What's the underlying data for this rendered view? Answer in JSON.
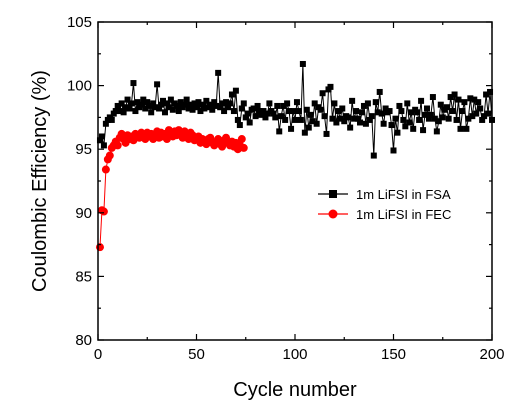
{
  "chart_data": {
    "type": "scatter",
    "xlabel": "Cycle number",
    "ylabel": "Coulombic Efficiency (%)",
    "xlim": [
      0,
      200
    ],
    "ylim": [
      80,
      105
    ],
    "xticks": [
      0,
      50,
      100,
      150,
      200
    ],
    "yticks": [
      80,
      85,
      90,
      95,
      100,
      105
    ],
    "xtick_labels": [
      "0",
      "50",
      "100",
      "150",
      "200"
    ],
    "ytick_labels": [
      "80",
      "85",
      "90",
      "95",
      "100",
      "105"
    ],
    "legend_position": "center-right",
    "grid": false,
    "series": [
      {
        "name": "1m LiFSI in FSA",
        "color": "#000000",
        "marker": "square",
        "x": [
          1,
          2,
          3,
          4,
          5,
          6,
          7,
          8,
          9,
          10,
          11,
          12,
          13,
          14,
          15,
          16,
          17,
          18,
          19,
          20,
          21,
          22,
          23,
          24,
          25,
          26,
          27,
          28,
          29,
          30,
          31,
          32,
          33,
          34,
          35,
          36,
          37,
          38,
          39,
          40,
          41,
          42,
          43,
          44,
          45,
          46,
          47,
          48,
          49,
          50,
          51,
          52,
          53,
          54,
          55,
          56,
          57,
          58,
          59,
          60,
          61,
          62,
          63,
          64,
          65,
          66,
          67,
          68,
          69,
          70,
          71,
          72,
          73,
          74,
          75,
          76,
          77,
          78,
          79,
          80,
          81,
          82,
          83,
          84,
          85,
          86,
          87,
          88,
          89,
          90,
          91,
          92,
          93,
          94,
          95,
          96,
          97,
          98,
          99,
          100,
          101,
          102,
          103,
          104,
          105,
          106,
          107,
          108,
          109,
          110,
          111,
          112,
          113,
          114,
          115,
          116,
          117,
          118,
          119,
          120,
          121,
          122,
          123,
          124,
          125,
          126,
          127,
          128,
          129,
          130,
          131,
          132,
          133,
          134,
          135,
          136,
          137,
          138,
          139,
          140,
          141,
          142,
          143,
          144,
          145,
          146,
          147,
          148,
          149,
          150,
          151,
          152,
          153,
          154,
          155,
          156,
          157,
          158,
          159,
          160,
          161,
          162,
          163,
          164,
          165,
          166,
          167,
          168,
          169,
          170,
          171,
          172,
          173,
          174,
          175,
          176,
          177,
          178,
          179,
          180,
          181,
          182,
          183,
          184,
          185,
          186,
          187,
          188,
          189,
          190,
          191,
          192,
          193,
          194,
          195,
          196,
          197,
          198,
          199,
          200
        ],
        "y": [
          95.7,
          96.0,
          95.3,
          97.0,
          97.3,
          97.5,
          97.3,
          97.8,
          98.0,
          98.4,
          98.0,
          98.6,
          97.9,
          98.3,
          98.9,
          98.2,
          98.6,
          100.2,
          98.0,
          98.7,
          98.3,
          98.5,
          98.9,
          98.2,
          98.7,
          98.4,
          97.9,
          98.6,
          98.3,
          100.1,
          98.2,
          98.5,
          98.8,
          97.9,
          98.6,
          98.3,
          98.9,
          98.1,
          98.6,
          98.4,
          98.0,
          98.7,
          98.3,
          98.5,
          98.9,
          98.2,
          98.5,
          98.1,
          98.6,
          98.3,
          98.7,
          98.0,
          98.5,
          98.2,
          98.8,
          98.3,
          98.5,
          98.1,
          98.7,
          98.4,
          101.0,
          98.3,
          98.6,
          98.0,
          98.7,
          98.3,
          98.6,
          99.3,
          98.0,
          99.6,
          97.3,
          96.9,
          98.2,
          98.6,
          97.5,
          97.8,
          97.1,
          98.1,
          98.2,
          97.6,
          98.4,
          98.0,
          97.7,
          98.0,
          97.5,
          97.8,
          98.6,
          98.0,
          97.8,
          97.5,
          98.4,
          96.4,
          97.6,
          98.4,
          97.3,
          98.6,
          98.0,
          96.6,
          98.0,
          97.3,
          98.7,
          98.0,
          97.3,
          101.7,
          96.3,
          98.1,
          96.7,
          97.7,
          97.2,
          98.6,
          97.0,
          98.3,
          98.1,
          99.4,
          97.6,
          96.2,
          99.7,
          99.9,
          97.4,
          98.6,
          97.1,
          98.0,
          97.4,
          98.2,
          97.2,
          97.6,
          97.5,
          96.7,
          98.8,
          97.4,
          98.0,
          97.4,
          97.1,
          97.9,
          98.4,
          97.0,
          98.6,
          97.3,
          97.6,
          94.5,
          98.7,
          97.9,
          99.5,
          97.8,
          97.0,
          98.2,
          97.9,
          98.0,
          96.9,
          94.9,
          97.4,
          96.3,
          98.4,
          98.0,
          97.3,
          96.8,
          98.6,
          97.1,
          97.9,
          96.6,
          98.1,
          97.9,
          97.3,
          98.8,
          96.5,
          97.7,
          98.2,
          97.4,
          97.7,
          99.1,
          97.4,
          96.4,
          97.2,
          98.5,
          97.5,
          98.1,
          98.3,
          97.4,
          99.1,
          98.0,
          99.3,
          97.3,
          98.9,
          96.6,
          98.0,
          98.7,
          96.6,
          97.4,
          99.0,
          97.6,
          98.9,
          97.8,
          98.7,
          98.2,
          97.3,
          97.6,
          99.3,
          97.8,
          99.5,
          97.3
        ]
      },
      {
        "name": "1m LiFSI in FEC",
        "color": "#ff0000",
        "marker": "circle",
        "x": [
          1,
          2,
          3,
          4,
          5,
          6,
          7,
          8,
          9,
          10,
          11,
          12,
          13,
          14,
          15,
          16,
          17,
          18,
          19,
          20,
          21,
          22,
          23,
          24,
          25,
          26,
          27,
          28,
          29,
          30,
          31,
          32,
          33,
          34,
          35,
          36,
          37,
          38,
          39,
          40,
          41,
          42,
          43,
          44,
          45,
          46,
          47,
          48,
          49,
          50,
          51,
          52,
          53,
          54,
          55,
          56,
          57,
          58,
          59,
          60,
          61,
          62,
          63,
          64,
          65,
          66,
          67,
          68,
          69,
          70,
          71,
          72,
          73,
          74
        ],
        "y": [
          87.3,
          90.2,
          90.1,
          93.4,
          94.2,
          94.5,
          95.1,
          95.3,
          95.6,
          95.3,
          95.9,
          96.2,
          95.8,
          95.5,
          96.1,
          95.8,
          96.0,
          95.7,
          96.2,
          96.0,
          95.9,
          96.3,
          96.1,
          95.8,
          96.3,
          96.0,
          96.2,
          95.8,
          96.1,
          96.4,
          95.9,
          96.3,
          96.0,
          96.2,
          95.8,
          96.5,
          96.2,
          96.0,
          96.4,
          96.1,
          96.5,
          96.3,
          95.9,
          96.4,
          96.2,
          95.8,
          96.3,
          96.1,
          95.7,
          95.9,
          96.0,
          95.5,
          95.8,
          95.6,
          95.4,
          95.8,
          95.9,
          95.5,
          95.3,
          95.6,
          95.8,
          95.4,
          95.2,
          95.7,
          95.9,
          95.5,
          95.3,
          95.6,
          95.2,
          95.5,
          95.0,
          95.3,
          95.8,
          95.1
        ]
      }
    ]
  }
}
